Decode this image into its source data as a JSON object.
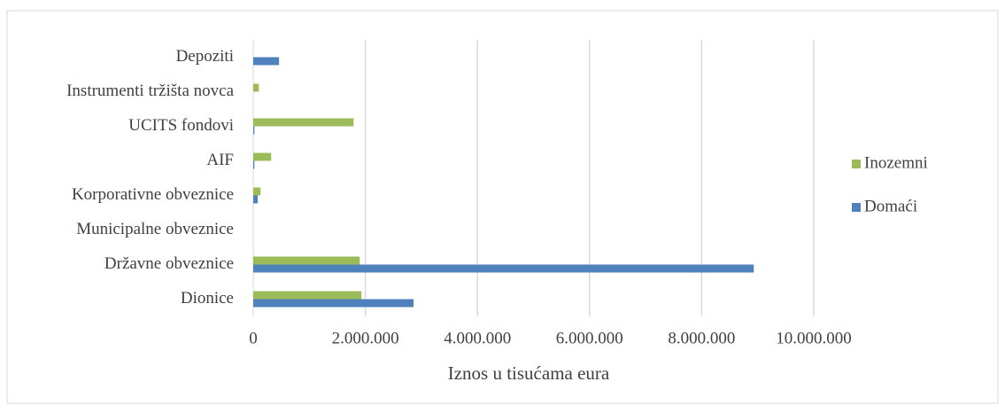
{
  "chart_data": {
    "type": "bar",
    "orientation": "horizontal",
    "x_label": "Iznos u tisućama eura",
    "categories": [
      "Dionice",
      "Državne obveznice",
      "Municipalne obveznice",
      "Korporativne obveznice",
      "AIF",
      "UCITS fondovi",
      "Instrumenti tržišta novca",
      "Depoziti"
    ],
    "series": [
      {
        "name": "Inozemni",
        "color": "#9bbb59",
        "values": [
          1930000,
          1900000,
          0,
          130000,
          320000,
          1790000,
          100000,
          0
        ]
      },
      {
        "name": "Domaći",
        "color": "#4f81bd",
        "values": [
          2860000,
          8930000,
          0,
          80000,
          20000,
          20000,
          0,
          460000
        ]
      }
    ],
    "xlim": [
      0,
      10000000
    ],
    "xticks": [
      0,
      {
        "value": 2000000,
        "label": "2.000.000"
      },
      {
        "value": 4000000,
        "label": "4.000.000"
      },
      {
        "value": 6000000,
        "label": "6.000.000"
      },
      {
        "value": 8000000,
        "label": "8.000.000"
      },
      {
        "value": 10000000,
        "label": "10.000.000"
      }
    ],
    "grid": true,
    "legend": "right"
  }
}
